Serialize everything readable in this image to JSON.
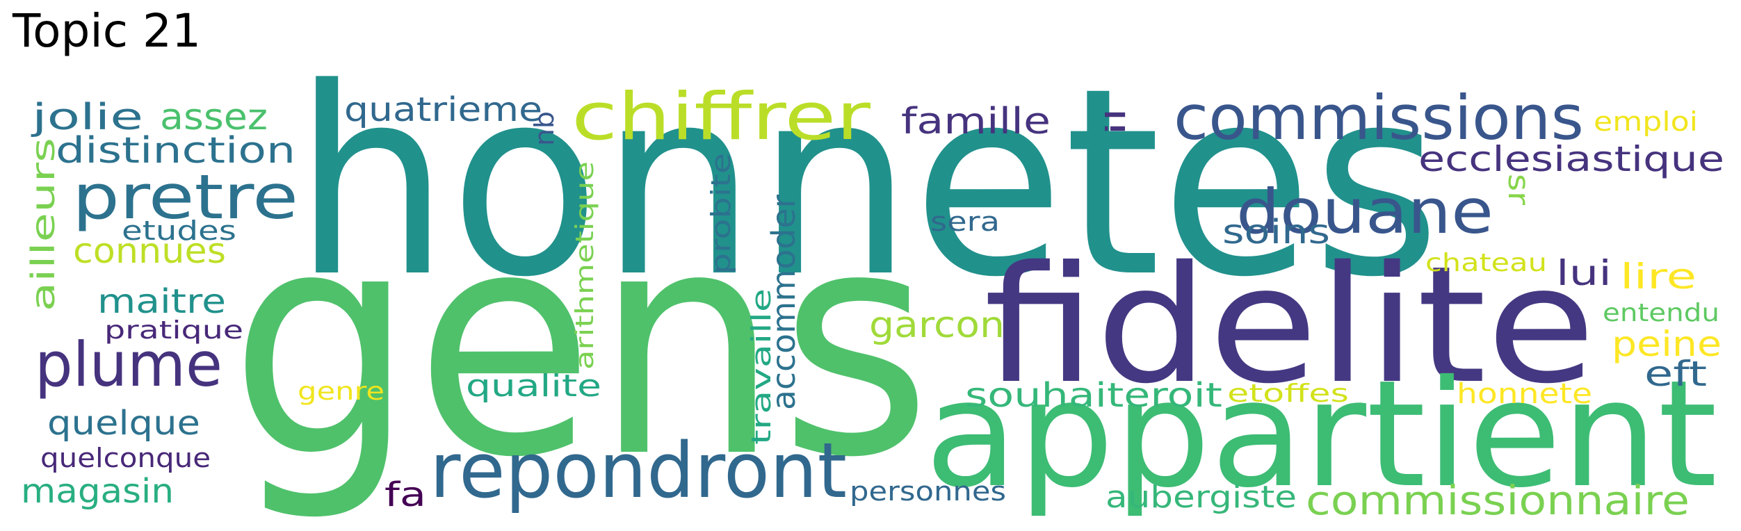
{
  "title": "Topic 21",
  "words": [
    {
      "text": "honnetes",
      "color": "#21918c"
    },
    {
      "text": "gens",
      "color": "#4fc16b"
    },
    {
      "text": "fidelite",
      "color": "#453882"
    },
    {
      "text": "appartient",
      "color": "#3dbc74"
    },
    {
      "text": "repondront",
      "color": "#31688e"
    },
    {
      "text": "commissions",
      "color": "#39568c"
    },
    {
      "text": "chiffrer",
      "color": "#bade28"
    },
    {
      "text": "douane",
      "color": "#39568c"
    },
    {
      "text": "pretre",
      "color": "#2c728e"
    },
    {
      "text": "plume",
      "color": "#46337e"
    },
    {
      "text": "commissionnaire",
      "color": "#7ad151"
    },
    {
      "text": "ecclesiastique",
      "color": "#46337e"
    },
    {
      "text": "quatrieme",
      "color": "#31688e"
    },
    {
      "text": "famille",
      "color": "#46337e"
    },
    {
      "text": "jolie",
      "color": "#2c728e"
    },
    {
      "text": "assez",
      "color": "#4ac16d"
    },
    {
      "text": "distinction",
      "color": "#2c728e"
    },
    {
      "text": "connues",
      "color": "#bddf26"
    },
    {
      "text": "etudes",
      "color": "#2c728e"
    },
    {
      "text": "ailleurs",
      "color": "#7ad151"
    },
    {
      "text": "maitre",
      "color": "#21918c"
    },
    {
      "text": "pratique",
      "color": "#482878"
    },
    {
      "text": "quelque",
      "color": "#2c728e"
    },
    {
      "text": "quelconque",
      "color": "#482878"
    },
    {
      "text": "magasin",
      "color": "#28ae80"
    },
    {
      "text": "genre",
      "color": "#f1e51d"
    },
    {
      "text": "qualite",
      "color": "#22a884"
    },
    {
      "text": "fa",
      "color": "#440154"
    },
    {
      "text": "accommoder",
      "color": "#2c728e"
    },
    {
      "text": "arithmetique",
      "color": "#7ad151"
    },
    {
      "text": "travaille",
      "color": "#22a884"
    },
    {
      "text": "probite",
      "color": "#2c728e"
    },
    {
      "text": "qu",
      "color": "#39568c"
    },
    {
      "text": "garcon",
      "color": "#a0da39"
    },
    {
      "text": "sera",
      "color": "#31688e"
    },
    {
      "text": "soins",
      "color": "#31688e"
    },
    {
      "text": "il",
      "color": "#46337e"
    },
    {
      "text": "sr",
      "color": "#86d549"
    },
    {
      "text": "emploi",
      "color": "#f1e51d"
    },
    {
      "text": "chateau",
      "color": "#d2e21b"
    },
    {
      "text": "lui",
      "color": "#46337e"
    },
    {
      "text": "lire",
      "color": "#fde725"
    },
    {
      "text": "entendu",
      "color": "#5ec962"
    },
    {
      "text": "peine",
      "color": "#fde725"
    },
    {
      "text": "eft",
      "color": "#31688e"
    },
    {
      "text": "souhaiteroit",
      "color": "#35b779"
    },
    {
      "text": "etoffes",
      "color": "#d2e21b"
    },
    {
      "text": "honnete",
      "color": "#fde725"
    },
    {
      "text": "aubergiste",
      "color": "#35b779"
    },
    {
      "text": "personnes",
      "color": "#31688e"
    }
  ]
}
